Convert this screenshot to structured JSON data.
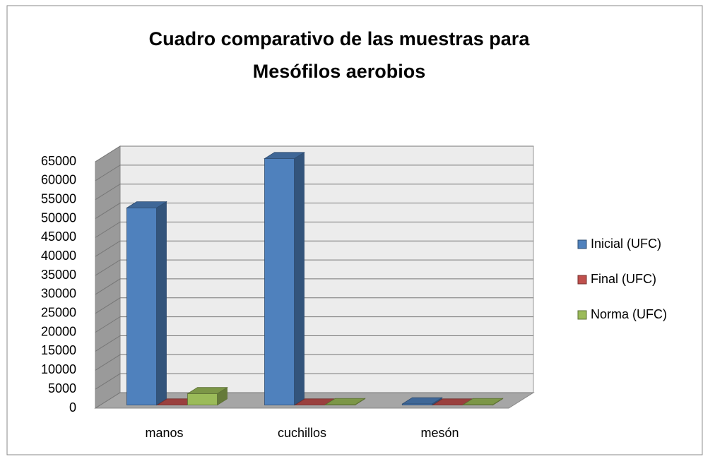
{
  "chart_data": {
    "type": "bar3d",
    "title": "Cuadro comparativo de las muestras para",
    "subtitle": "Mesófilos aerobios",
    "categories": [
      "manos",
      "cuchillos",
      "mesón"
    ],
    "series": [
      {
        "name": "Inicial (UFC)",
        "color": "#4f81bd",
        "values": [
          52000,
          65000,
          300
        ]
      },
      {
        "name": "Final (UFC)",
        "color": "#c0504d",
        "values": [
          0,
          0,
          0
        ]
      },
      {
        "name": "Norma (UFC)",
        "color": "#9bbb59",
        "values": [
          3000,
          100,
          100
        ]
      }
    ],
    "ylim": [
      0,
      65000
    ],
    "yticks": [
      0,
      5000,
      10000,
      15000,
      20000,
      25000,
      30000,
      35000,
      40000,
      45000,
      50000,
      55000,
      60000,
      65000
    ],
    "grid": true,
    "legend": "right"
  }
}
